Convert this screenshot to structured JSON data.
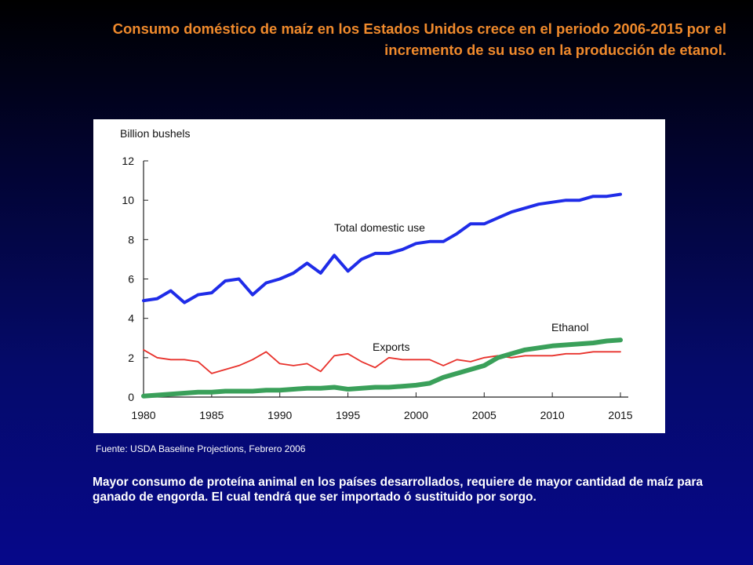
{
  "slide": {
    "title": "Consumo doméstico de maíz en los Estados Unidos crece en el periodo 2006-2015 por el incremento de su uso en la producción de etanol.",
    "source_note": "Fuente:  USDA Baseline Projections, Febrero 2006",
    "body_text": "Mayor consumo de proteína animal en los países desarrollados, requiere de mayor cantidad de maíz para ganado de engorda.  El cual tendrá que ser importado ó sustituido por sorgo."
  },
  "colors": {
    "title": "#f08a2c",
    "total_domestic_use": "#1f2ce8",
    "exports": "#e8322c",
    "ethanol": "#3aa05a"
  },
  "chart_data": {
    "type": "line",
    "ylabel": "Billion bushels",
    "xlim": [
      1980,
      2015
    ],
    "ylim": [
      0,
      12
    ],
    "xticks": [
      1980,
      1985,
      1990,
      1995,
      2000,
      2005,
      2010,
      2015
    ],
    "yticks": [
      0,
      2,
      4,
      6,
      8,
      10,
      12
    ],
    "grid": false,
    "x": [
      1980,
      1981,
      1982,
      1983,
      1984,
      1985,
      1986,
      1987,
      1988,
      1989,
      1990,
      1991,
      1992,
      1993,
      1994,
      1995,
      1996,
      1997,
      1998,
      1999,
      2000,
      2001,
      2002,
      2003,
      2004,
      2005,
      2006,
      2007,
      2008,
      2009,
      2010,
      2011,
      2012,
      2013,
      2014,
      2015
    ],
    "series": [
      {
        "name": "Total domestic use",
        "color": "#1f2ce8",
        "values": [
          4.9,
          5.0,
          5.4,
          4.8,
          5.2,
          5.3,
          5.9,
          6.0,
          5.2,
          5.8,
          6.0,
          6.3,
          6.8,
          6.3,
          7.2,
          6.4,
          7.0,
          7.3,
          7.3,
          7.5,
          7.8,
          7.9,
          7.9,
          8.3,
          8.8,
          8.8,
          9.1,
          9.4,
          9.6,
          9.8,
          9.9,
          10.0,
          10.0,
          10.2,
          10.2,
          10.3
        ]
      },
      {
        "name": "Exports",
        "color": "#e8322c",
        "values": [
          2.4,
          2.0,
          1.9,
          1.9,
          1.8,
          1.2,
          1.4,
          1.6,
          1.9,
          2.3,
          1.7,
          1.6,
          1.7,
          1.3,
          2.1,
          2.2,
          1.8,
          1.5,
          2.0,
          1.9,
          1.9,
          1.9,
          1.6,
          1.9,
          1.8,
          2.0,
          2.1,
          2.0,
          2.1,
          2.1,
          2.1,
          2.2,
          2.2,
          2.3,
          2.3,
          2.3
        ]
      },
      {
        "name": "Ethanol",
        "color": "#3aa05a",
        "values": [
          0.05,
          0.1,
          0.15,
          0.2,
          0.25,
          0.25,
          0.3,
          0.3,
          0.3,
          0.35,
          0.35,
          0.4,
          0.45,
          0.45,
          0.5,
          0.4,
          0.45,
          0.5,
          0.5,
          0.55,
          0.6,
          0.7,
          1.0,
          1.2,
          1.4,
          1.6,
          2.0,
          2.2,
          2.4,
          2.5,
          2.6,
          2.65,
          2.7,
          2.75,
          2.85,
          2.9
        ]
      }
    ]
  }
}
